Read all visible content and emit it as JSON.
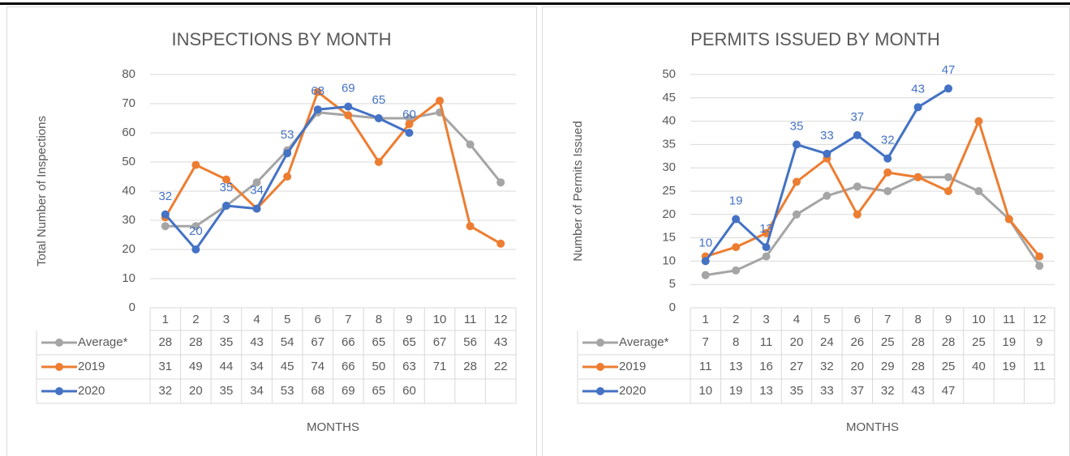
{
  "chart_data": [
    {
      "type": "line",
      "title": "INSPECTIONS BY MONTH",
      "y_label": "Total Number of Inspections",
      "x_label": "MONTHS",
      "categories": [
        "1",
        "2",
        "3",
        "4",
        "5",
        "6",
        "7",
        "8",
        "9",
        "10",
        "11",
        "12"
      ],
      "series": [
        {
          "name": "Average*",
          "color": "#a5a5a5",
          "values": [
            28,
            28,
            35,
            43,
            54,
            67,
            66,
            65,
            65,
            67,
            56,
            43
          ]
        },
        {
          "name": "2019",
          "color": "#ed7d31",
          "values": [
            31,
            49,
            44,
            34,
            45,
            74,
            66,
            50,
            63,
            71,
            28,
            22
          ]
        },
        {
          "name": "2020",
          "color": "#4472c4",
          "values": [
            32,
            20,
            35,
            34,
            53,
            68,
            69,
            65,
            60,
            null,
            null,
            null
          ],
          "data_labels": true
        }
      ],
      "ylim": [
        0,
        80
      ],
      "yticks": [
        0,
        10,
        20,
        30,
        40,
        50,
        60,
        70,
        80
      ],
      "grid": true
    },
    {
      "type": "line",
      "title": "PERMITS ISSUED BY MONTH",
      "y_label": "Number of Permits Issued",
      "x_label": "MONTHS",
      "categories": [
        "1",
        "2",
        "3",
        "4",
        "5",
        "6",
        "7",
        "8",
        "9",
        "10",
        "11",
        "12"
      ],
      "series": [
        {
          "name": "Average*",
          "color": "#a5a5a5",
          "values": [
            7,
            8,
            11,
            20,
            24,
            26,
            25,
            28,
            28,
            25,
            19,
            9
          ]
        },
        {
          "name": "2019",
          "color": "#ed7d31",
          "values": [
            11,
            13,
            16,
            27,
            32,
            20,
            29,
            28,
            25,
            40,
            19,
            11
          ]
        },
        {
          "name": "2020",
          "color": "#4472c4",
          "values": [
            10,
            19,
            13,
            35,
            33,
            37,
            32,
            43,
            47,
            null,
            null,
            null
          ],
          "data_labels": true
        }
      ],
      "ylim": [
        0,
        50
      ],
      "yticks": [
        0,
        5,
        10,
        15,
        20,
        25,
        30,
        35,
        40,
        45,
        50
      ],
      "grid": true
    }
  ]
}
